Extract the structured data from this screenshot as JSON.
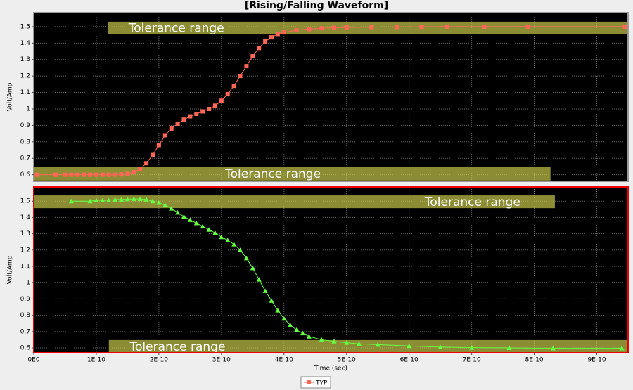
{
  "chart_data": [
    {
      "type": "line",
      "title": "[Rising/Falling Waveform]",
      "ylabel": "Volt/Amp",
      "xlim": [
        0,
        9.5e-10
      ],
      "ylim": [
        0.56,
        1.585
      ],
      "yticks": [
        0.6,
        0.7,
        0.8,
        0.9,
        1.0,
        1.1,
        1.2,
        1.3,
        1.4,
        1.5
      ],
      "grid": true,
      "tolerance_bands": [
        {
          "label": "Tolerance range",
          "x": [
            1.18e-10,
            9.5e-10
          ],
          "y": [
            1.455,
            1.53
          ]
        },
        {
          "label": "Tolerance range",
          "x": [
            0,
            8.26e-10
          ],
          "y": [
            0.565,
            0.647
          ]
        }
      ],
      "series": [
        {
          "name": "TYP",
          "color": "#ff6655",
          "marker": "square",
          "x": [
            5e-12,
            3.5e-11,
            5e-11,
            6e-11,
            7e-11,
            8e-11,
            9e-11,
            1e-10,
            1.1e-10,
            1.2e-10,
            1.3e-10,
            1.4e-10,
            1.5e-10,
            1.6e-10,
            1.7e-10,
            1.8e-10,
            1.9e-10,
            2e-10,
            2.1e-10,
            2.2e-10,
            2.3e-10,
            2.4e-10,
            2.5e-10,
            2.6e-10,
            2.7e-10,
            2.8e-10,
            2.9e-10,
            3e-10,
            3.1e-10,
            3.2e-10,
            3.3e-10,
            3.4e-10,
            3.5e-10,
            3.6e-10,
            3.7e-10,
            3.8e-10,
            3.9e-10,
            4e-10,
            4.2e-10,
            4.4e-10,
            4.6e-10,
            4.8e-10,
            5e-10,
            5.4e-10,
            5.8e-10,
            6.2e-10,
            6.6e-10,
            7.2e-10,
            7.9e-10,
            9.45e-10
          ],
          "values": [
            0.6,
            0.6,
            0.6,
            0.6,
            0.6,
            0.6,
            0.6,
            0.6,
            0.6,
            0.6,
            0.6,
            0.602,
            0.605,
            0.615,
            0.635,
            0.67,
            0.72,
            0.78,
            0.84,
            0.88,
            0.91,
            0.935,
            0.955,
            0.97,
            0.985,
            1.0,
            1.02,
            1.05,
            1.09,
            1.14,
            1.2,
            1.26,
            1.32,
            1.37,
            1.41,
            1.435,
            1.455,
            1.465,
            1.478,
            1.485,
            1.49,
            1.493,
            1.495,
            1.497,
            1.498,
            1.499,
            1.5,
            1.5,
            1.5,
            1.5
          ]
        }
      ]
    },
    {
      "type": "line",
      "ylabel": "Volt/Amp",
      "xlabel": "Time (sec)",
      "xlim": [
        0,
        9.5e-10
      ],
      "ylim": [
        0.57,
        1.587
      ],
      "xticks": [
        {
          "value": 0,
          "label": "0E0"
        },
        {
          "value": 1e-10,
          "label": "1E-10"
        },
        {
          "value": 2e-10,
          "label": "2E-10"
        },
        {
          "value": 3e-10,
          "label": "3E-10"
        },
        {
          "value": 4e-10,
          "label": "4E-10"
        },
        {
          "value": 5e-10,
          "label": "5E-10"
        },
        {
          "value": 6e-10,
          "label": "6E-10"
        },
        {
          "value": 7e-10,
          "label": "7E-10"
        },
        {
          "value": 8e-10,
          "label": "8E-10"
        },
        {
          "value": 9e-10,
          "label": "9E-10"
        }
      ],
      "yticks": [
        0.6,
        0.7,
        0.8,
        0.9,
        1.0,
        1.1,
        1.2,
        1.3,
        1.4,
        1.5
      ],
      "grid": true,
      "tolerance_bands": [
        {
          "label": "Tolerance range",
          "x": [
            0,
            8.33e-10
          ],
          "y": [
            1.457,
            1.535
          ]
        },
        {
          "label": "Tolerance range",
          "x": [
            1.2e-10,
            9.5e-10
          ],
          "y": [
            0.57,
            0.648
          ]
        }
      ],
      "series": [
        {
          "color": "#66ff44",
          "marker": "triangle",
          "x": [
            6e-11,
            9e-11,
            1e-10,
            1.1e-10,
            1.2e-10,
            1.3e-10,
            1.4e-10,
            1.5e-10,
            1.6e-10,
            1.7e-10,
            1.8e-10,
            1.9e-10,
            2e-10,
            2.1e-10,
            2.2e-10,
            2.3e-10,
            2.4e-10,
            2.5e-10,
            2.6e-10,
            2.7e-10,
            2.8e-10,
            2.9e-10,
            3e-10,
            3.1e-10,
            3.2e-10,
            3.3e-10,
            3.4e-10,
            3.5e-10,
            3.6e-10,
            3.7e-10,
            3.8e-10,
            3.9e-10,
            4e-10,
            4.1e-10,
            4.2e-10,
            4.3e-10,
            4.4e-10,
            4.6e-10,
            4.8e-10,
            5e-10,
            5.2e-10,
            5.5e-10,
            6e-10,
            6.5e-10,
            7e-10,
            7.6e-10,
            8.3e-10,
            9.4e-10
          ],
          "values": [
            1.5,
            1.5,
            1.505,
            1.505,
            1.505,
            1.51,
            1.51,
            1.512,
            1.513,
            1.513,
            1.51,
            1.5,
            1.49,
            1.475,
            1.455,
            1.43,
            1.405,
            1.385,
            1.365,
            1.345,
            1.325,
            1.305,
            1.28,
            1.26,
            1.235,
            1.2,
            1.15,
            1.09,
            1.02,
            0.95,
            0.89,
            0.83,
            0.78,
            0.74,
            0.71,
            0.69,
            0.67,
            0.65,
            0.64,
            0.632,
            0.625,
            0.62,
            0.612,
            0.605,
            0.602,
            0.6,
            0.598,
            0.598
          ]
        }
      ]
    }
  ]
}
